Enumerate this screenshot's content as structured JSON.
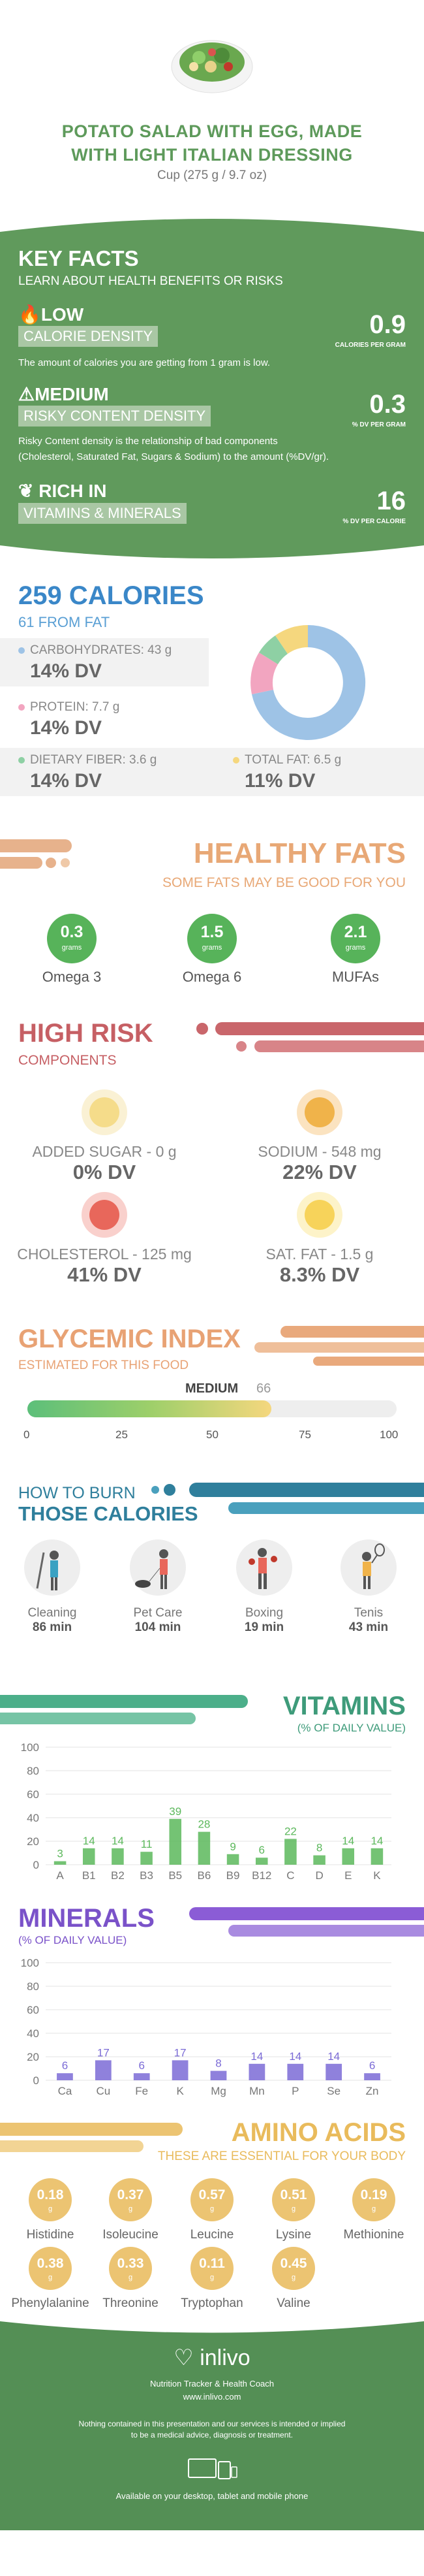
{
  "header": {
    "title_line1": "POTATO SALAD WITH EGG, MADE",
    "title_line2": "WITH LIGHT ITALIAN DRESSING",
    "serving": "Cup (275 g / 9.7 oz)"
  },
  "key_facts": {
    "title": "KEY FACTS",
    "subtitle": "LEARN ABOUT HEALTH BENEFITS OR RISKS",
    "calorie": {
      "level": "LOW",
      "label": "CALORIE DENSITY",
      "value": "0.9",
      "unit": "CALORIES PER GRAM",
      "text": "The amount of calories you are getting from 1 gram is low."
    },
    "risky": {
      "level": "MEDIUM",
      "label": "RISKY CONTENT DENSITY",
      "value": "0.3",
      "unit": "% DV PER GRAM",
      "text1": "Risky Content density is the relationship of bad components",
      "text2": "(Cholesterol, Saturated Fat, Sugars & Sodium) to the amount (%DV/gr)."
    },
    "vitamins": {
      "level": "RICH  IN",
      "label": "VITAMINS & MINERALS",
      "value": "16",
      "unit": "% DV PER CALORIE"
    }
  },
  "calories": {
    "title": "259 CALORIES",
    "from_fat": "61 FROM FAT",
    "carbs": {
      "label": "CARBOHYDRATES: 43 g",
      "dv": "14% DV",
      "color": "#9ec3e6"
    },
    "protein": {
      "label": "PROTEIN: 7.7 g",
      "dv": "14% DV",
      "color": "#f2a5c0"
    },
    "fiber": {
      "label": "DIETARY FIBER: 3.6 g",
      "dv": "14% DV",
      "color": "#8ed0a4"
    },
    "fat": {
      "label": "TOTAL FAT: 6.5 g",
      "dv": "11% DV",
      "color": "#f5d77e"
    }
  },
  "healthy_fats": {
    "title": "HEALTHY FATS",
    "subtitle": "SOME FATS MAY BE GOOD FOR YOU",
    "items": [
      {
        "value": "0.3",
        "unit": "grams",
        "name": "Omega 3"
      },
      {
        "value": "1.5",
        "unit": "grams",
        "name": "Omega 6"
      },
      {
        "value": "2.1",
        "unit": "grams",
        "name": "MUFAs"
      }
    ]
  },
  "high_risk": {
    "title": "HIGH RISK",
    "subtitle": "COMPONENTS",
    "items": [
      {
        "label": "ADDED SUGAR - 0 g",
        "dv": "0% DV",
        "color": "#f7e6b5",
        "mood": "grin"
      },
      {
        "label": "SODIUM - 548 mg",
        "dv": "22% DV",
        "color": "#f0b34a",
        "mood": "smile"
      },
      {
        "label": "CHOLESTEROL - 125 mg",
        "dv": "41% DV",
        "color": "#e8675b",
        "mood": "sad"
      },
      {
        "label": "SAT. FAT - 1.5 g",
        "dv": "8.3% DV",
        "color": "#f7d35a",
        "mood": "smile"
      }
    ]
  },
  "glycemic": {
    "title": "GLYCEMIC INDEX",
    "subtitle": "ESTIMATED FOR THIS FOOD",
    "level": "MEDIUM",
    "value": 66,
    "value_label": "66",
    "ticks": [
      "0",
      "25",
      "50",
      "75",
      "100"
    ]
  },
  "burn": {
    "title1": "HOW TO BURN",
    "title2": "THOSE CALORIES",
    "activities": [
      {
        "name": "Cleaning",
        "minutes": "86 min",
        "icon": "cleaning-icon"
      },
      {
        "name": "Pet Care",
        "minutes": "104 min",
        "icon": "pet-care-icon"
      },
      {
        "name": "Boxing",
        "minutes": "19 min",
        "icon": "boxing-icon"
      },
      {
        "name": "Tenis",
        "minutes": "43 min",
        "icon": "tennis-icon"
      }
    ]
  },
  "vitamins": {
    "title": "VITAMINS",
    "subtitle": "(% OF DAILY VALUE)"
  },
  "minerals": {
    "title": "MINERALS",
    "subtitle": "(% OF DAILY VALUE)"
  },
  "chart_data": [
    {
      "type": "bar",
      "categories": [
        "A",
        "B1",
        "B2",
        "B3",
        "B5",
        "B6",
        "B9",
        "B12",
        "C",
        "D",
        "E",
        "K"
      ],
      "values": [
        3,
        14,
        14,
        11,
        39,
        28,
        9,
        6,
        22,
        8,
        14,
        14
      ],
      "yticks": [
        "0",
        "20",
        "40",
        "60",
        "80",
        "100"
      ],
      "ylim": [
        0,
        100
      ],
      "color": "#5cb85c"
    },
    {
      "type": "bar",
      "categories": [
        "Ca",
        "Cu",
        "Fe",
        "K",
        "Mg",
        "Mn",
        "P",
        "Se",
        "Zn"
      ],
      "values": [
        6,
        17,
        6,
        17,
        8,
        14,
        14,
        14,
        6
      ],
      "yticks": [
        "0",
        "20",
        "40",
        "60",
        "80",
        "100"
      ],
      "ylim": [
        0,
        100
      ],
      "color": "#7b6bd6"
    }
  ],
  "amino": {
    "title": "AMINO ACIDS",
    "subtitle": "THESE ARE ESSENTIAL FOR YOUR BODY",
    "items": [
      {
        "value": "0.18",
        "unit": "g",
        "name": "Histidine"
      },
      {
        "value": "0.37",
        "unit": "g",
        "name": "Isoleucine"
      },
      {
        "value": "0.57",
        "unit": "g",
        "name": "Leucine"
      },
      {
        "value": "0.51",
        "unit": "g",
        "name": "Lysine"
      },
      {
        "value": "0.19",
        "unit": "g",
        "name": "Methionine"
      },
      {
        "value": "0.38",
        "unit": "g",
        "name": "Phenylalanine"
      },
      {
        "value": "0.33",
        "unit": "g",
        "name": "Threonine"
      },
      {
        "value": "0.11",
        "unit": "g",
        "name": "Tryptophan"
      },
      {
        "value": "0.45",
        "unit": "g",
        "name": "Valine"
      }
    ]
  },
  "footer": {
    "brand": "inlivo",
    "tagline": "Nutrition Tracker & Health Coach",
    "url": "www.inlivo.com",
    "disclaimer1": "Nothing contained in this presentation and our services is intended or implied",
    "disclaimer2": "to be a medical advice, diagnosis or treatment.",
    "available": "Available on your desktop, tablet and mobile phone"
  }
}
